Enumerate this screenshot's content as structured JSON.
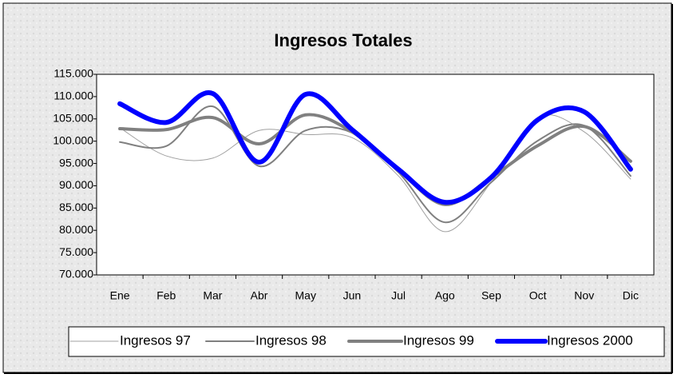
{
  "chart_data": {
    "type": "line",
    "title": "Ingresos Totales",
    "categories": [
      "Ene",
      "Feb",
      "Mar",
      "Abr",
      "May",
      "Jun",
      "Jul",
      "Ago",
      "Sep",
      "Oct",
      "Nov",
      "Dic"
    ],
    "ylim": [
      70000,
      115000
    ],
    "yticks": [
      {
        "value": 70000,
        "label": "70.000"
      },
      {
        "value": 75000,
        "label": "75.000"
      },
      {
        "value": 80000,
        "label": "80.000"
      },
      {
        "value": 85000,
        "label": "85.000"
      },
      {
        "value": 90000,
        "label": "90.000"
      },
      {
        "value": 95000,
        "label": "95.000"
      },
      {
        "value": 100000,
        "label": "100.000"
      },
      {
        "value": 105000,
        "label": "105.000"
      },
      {
        "value": 110000,
        "label": "110.000"
      },
      {
        "value": 115000,
        "label": "115.000"
      }
    ],
    "grid": false,
    "legend": "bottom",
    "series": [
      {
        "name": "Ingresos 97",
        "color": "#a0a0a0",
        "width": 1,
        "values": [
          103000,
          96700,
          96200,
          102400,
          101500,
          100800,
          92200,
          79700,
          90800,
          105300,
          102100,
          91500
        ]
      },
      {
        "name": "Ingresos 98",
        "color": "#808080",
        "width": 2,
        "values": [
          99800,
          98900,
          107800,
          94400,
          102400,
          101900,
          93000,
          81800,
          90800,
          100100,
          103500,
          92200
        ]
      },
      {
        "name": "Ingresos 99",
        "color": "#808080",
        "width": 4,
        "values": [
          102800,
          102600,
          105300,
          99400,
          105900,
          102100,
          93500,
          85800,
          91900,
          99000,
          103300,
          95500
        ]
      },
      {
        "name": "Ingresos 2000",
        "color": "#0000ff",
        "width": 6,
        "values": [
          108400,
          104200,
          110700,
          95300,
          110500,
          102600,
          93700,
          86300,
          91900,
          104800,
          106600,
          93700
        ]
      }
    ]
  }
}
